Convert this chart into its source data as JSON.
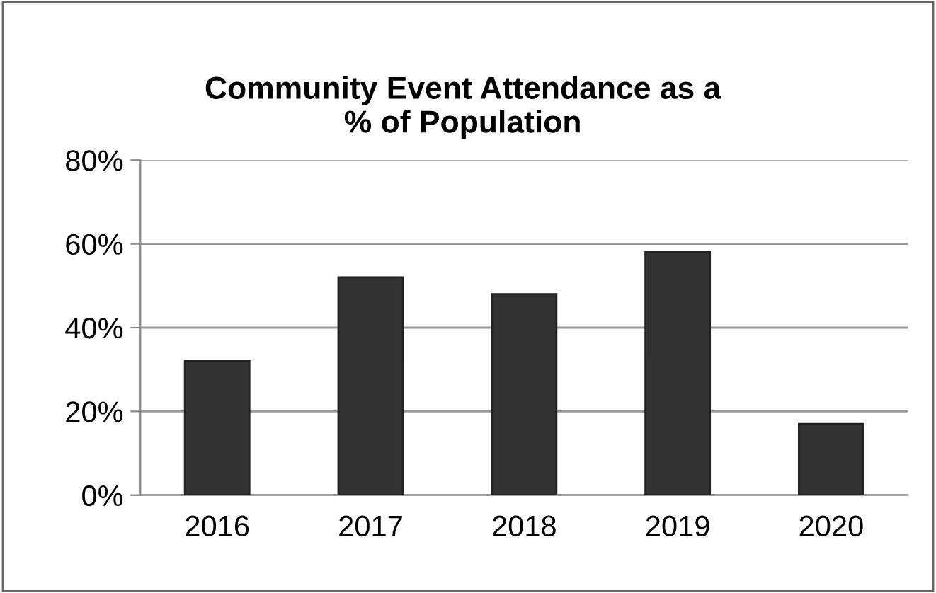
{
  "chart_data": {
    "type": "bar",
    "title": "Community Event Attendance as a\n% of Population",
    "categories": [
      "2016",
      "2017",
      "2018",
      "2019",
      "2020"
    ],
    "values": [
      32,
      52,
      48,
      58,
      17
    ],
    "color": "#333333",
    "ylim": [
      0,
      80
    ],
    "yticks": [
      {
        "value": 0,
        "label": "0%"
      },
      {
        "value": 20,
        "label": "20%"
      },
      {
        "value": 40,
        "label": "40%"
      },
      {
        "value": 60,
        "label": "60%"
      },
      {
        "value": 80,
        "label": "80%"
      }
    ],
    "grid": "y",
    "legend": false
  }
}
